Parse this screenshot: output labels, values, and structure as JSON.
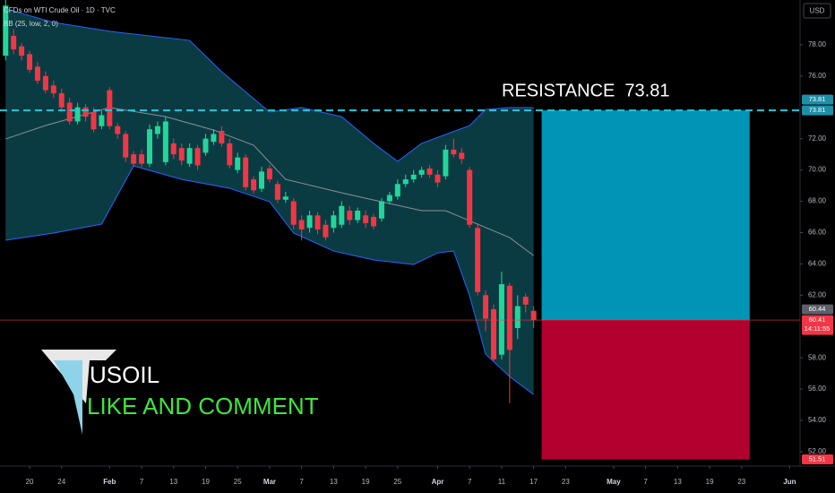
{
  "chart_data": {
    "type": "candlestick",
    "title": "CFDs on WTI Crude Oil · 1D · TVC",
    "indicator_label": "BB (25, low, 2, 0)",
    "currency_label": "USD",
    "annotation": "RESISTANCE  73.81",
    "logo_text": "USOIL",
    "caption": "LIKE AND COMMENT",
    "up_color": "#22d69a",
    "down_color": "#f23645",
    "band_color": "#2962ff",
    "band_fill": "#0b3b42",
    "basis_color": "#8a8f98",
    "resistance": {
      "value": 73.81,
      "color": "#26c6da"
    },
    "last_price_line": {
      "value": 60.41,
      "color": "#f23645"
    },
    "position_box": {
      "x_start": 64,
      "x_end": 90,
      "target": 73.81,
      "entry": 60.41,
      "stop": 51.51,
      "profit_color": "#0094b6",
      "loss_color": "#b2002f"
    },
    "xlim": [
      -3.7,
      96.3
    ],
    "ylim": [
      51.08,
      80.86
    ],
    "xticks": [
      {
        "value": 0,
        "label": "20"
      },
      {
        "value": 4,
        "label": "24"
      },
      {
        "value": 10,
        "label": "Feb"
      },
      {
        "value": 14,
        "label": "7"
      },
      {
        "value": 18,
        "label": "13"
      },
      {
        "value": 22,
        "label": "19"
      },
      {
        "value": 26,
        "label": "25"
      },
      {
        "value": 30,
        "label": "Mar"
      },
      {
        "value": 34,
        "label": "7"
      },
      {
        "value": 38,
        "label": "13"
      },
      {
        "value": 42,
        "label": "19"
      },
      {
        "value": 46,
        "label": "25"
      },
      {
        "value": 51,
        "label": "Apr"
      },
      {
        "value": 55,
        "label": "7"
      },
      {
        "value": 59,
        "label": "11"
      },
      {
        "value": 63,
        "label": "17"
      },
      {
        "value": 67,
        "label": "23"
      },
      {
        "value": 73,
        "label": "May"
      },
      {
        "value": 77,
        "label": "7"
      },
      {
        "value": 81,
        "label": "13"
      },
      {
        "value": 85,
        "label": "19"
      },
      {
        "value": 89,
        "label": "23"
      },
      {
        "value": 95,
        "label": "Jun"
      }
    ],
    "yticks": [
      {
        "value": 52,
        "label": "52.00"
      },
      {
        "value": 54,
        "label": "54.00"
      },
      {
        "value": 56,
        "label": "56.00"
      },
      {
        "value": 58,
        "label": "58.00"
      },
      {
        "value": 62,
        "label": "62.00"
      },
      {
        "value": 64,
        "label": "64.00"
      },
      {
        "value": 66,
        "label": "66.00"
      },
      {
        "value": 68,
        "label": "68.00"
      },
      {
        "value": 70,
        "label": "70.00"
      },
      {
        "value": 72,
        "label": "72.00"
      },
      {
        "value": 76,
        "label": "76.00"
      },
      {
        "value": 78,
        "label": "78.00"
      }
    ],
    "price_tags": [
      {
        "value": 73.81,
        "label": "73.81",
        "color": "#1f8fa8"
      },
      {
        "value": 73.81,
        "label": "73.81",
        "color": "#1f8fa8"
      },
      {
        "value": 60.44,
        "label": "60.44",
        "color": "#5d606b"
      },
      {
        "value": 60.41,
        "label": "60.41",
        "color": "#f23645",
        "countdown": "14:11:55"
      },
      {
        "value": 51.51,
        "label": "51.51",
        "color": "#f23645"
      }
    ],
    "x": [
      -3,
      -2,
      -1,
      0,
      1,
      2,
      3,
      4,
      5,
      6,
      7,
      8,
      9,
      10,
      11,
      12,
      13,
      14,
      15,
      16,
      17,
      18,
      19,
      20,
      21,
      22,
      23,
      24,
      25,
      26,
      27,
      28,
      29,
      30,
      31,
      32,
      33,
      34,
      35,
      36,
      37,
      38,
      39,
      40,
      41,
      42,
      43,
      44,
      45,
      46,
      47,
      48,
      49,
      50,
      51,
      52,
      53,
      54,
      55,
      56,
      57,
      58,
      59,
      60,
      61,
      62,
      63
    ],
    "open": [
      77.3,
      78.57,
      77.9,
      77.4,
      76.6,
      76.0,
      75.4,
      74.9,
      74.3,
      73.1,
      74.0,
      73.7,
      72.8,
      75.1,
      72.8,
      72.3,
      71.0,
      71.0,
      70.4,
      72.3,
      70.5,
      71.7,
      71.4,
      70.4,
      71.4,
      71.1,
      71.8,
      72.5,
      71.7,
      70.0,
      70.8,
      69.4,
      68.8,
      70.1,
      69.1,
      68.1,
      68.0,
      66.8,
      66.3,
      67.1,
      66.5,
      66.3,
      66.5,
      67.4,
      66.8,
      67.1,
      67.0,
      66.9,
      68.0,
      68.3,
      69.1,
      69.4,
      69.7,
      70.1,
      69.7,
      69.6,
      71.3,
      71.1,
      70.0,
      66.3,
      62.0,
      61.1,
      58.2,
      62.6,
      59.9,
      61.9,
      61.0
    ],
    "high": [
      80.86,
      79.0,
      78.1,
      77.6,
      76.9,
      76.3,
      75.7,
      75.2,
      74.6,
      74.3,
      74.2,
      74.0,
      73.8,
      75.3,
      73.0,
      72.5,
      71.2,
      71.3,
      72.9,
      73.1,
      73.4,
      72.0,
      71.7,
      71.7,
      71.6,
      72.3,
      72.6,
      72.8,
      72.0,
      71.1,
      71.0,
      69.6,
      70.2,
      70.3,
      69.3,
      68.6,
      68.2,
      67.1,
      67.4,
      67.3,
      66.8,
      67.4,
      68.0,
      67.7,
      67.6,
      67.4,
      67.2,
      68.2,
      68.6,
      69.4,
      69.7,
      70.0,
      70.2,
      70.3,
      70.0,
      71.6,
      72.0,
      71.4,
      70.2,
      66.5,
      62.3,
      61.4,
      63.5,
      62.8,
      62.0,
      62.1,
      61.3
    ],
    "low": [
      77.0,
      77.4,
      77.0,
      76.2,
      75.5,
      74.9,
      74.6,
      73.8,
      72.9,
      72.9,
      73.1,
      72.4,
      72.6,
      72.6,
      72.0,
      70.5,
      70.2,
      70.2,
      70.2,
      72.0,
      70.3,
      70.7,
      70.3,
      70.2,
      70.0,
      70.9,
      71.6,
      71.5,
      70.1,
      69.8,
      68.7,
      68.5,
      68.6,
      69.2,
      67.9,
      67.9,
      66.2,
      65.5,
      66.0,
      65.9,
      65.5,
      66.0,
      66.3,
      66.5,
      66.6,
      66.3,
      66.2,
      66.7,
      67.8,
      68.1,
      68.9,
      69.2,
      69.5,
      69.5,
      68.9,
      69.4,
      70.8,
      70.4,
      66.3,
      62.0,
      59.7,
      57.8,
      57.9,
      55.1,
      59.2,
      60.9,
      59.9
    ],
    "close": [
      80.5,
      77.71,
      77.3,
      76.4,
      75.7,
      75.1,
      74.9,
      74.0,
      73.1,
      74.0,
      73.4,
      72.6,
      73.5,
      72.8,
      72.3,
      70.8,
      70.4,
      70.4,
      72.6,
      72.8,
      73.1,
      71.0,
      70.6,
      71.4,
      70.3,
      72.0,
      72.3,
      71.7,
      70.3,
      70.8,
      68.9,
      68.7,
      69.9,
      69.4,
      68.1,
      68.3,
      66.5,
      66.2,
      67.1,
      66.2,
      65.7,
      67.1,
      67.7,
      66.8,
      67.4,
      66.6,
      66.4,
      68.0,
      68.4,
      69.1,
      69.4,
      69.7,
      70.0,
      69.7,
      69.2,
      71.3,
      71.0,
      70.7,
      66.5,
      62.2,
      60.5,
      57.9,
      62.7,
      58.5,
      61.3,
      61.4,
      60.41
    ],
    "bands": {
      "upper": {
        "x": [
          -3,
          3,
          10,
          20,
          24,
          30,
          34,
          39,
          43,
          46,
          49,
          52,
          55,
          57,
          60,
          63
        ],
        "values": [
          80.29,
          79.43,
          78.86,
          78.28,
          76.28,
          73.7,
          73.99,
          73.41,
          71.7,
          70.55,
          71.7,
          72.27,
          72.84,
          73.87,
          73.99,
          73.99
        ]
      },
      "basis": {
        "x": [
          -3,
          2,
          10,
          17,
          23,
          28,
          32,
          39,
          44,
          49,
          52,
          56,
          60,
          63
        ],
        "values": [
          71.98,
          72.84,
          73.99,
          73.41,
          72.55,
          71.58,
          69.4,
          68.54,
          67.97,
          67.4,
          67.4,
          66.54,
          65.68,
          64.53
        ]
      },
      "lower": {
        "x": [
          -3,
          3,
          9,
          13,
          19,
          25,
          30,
          33,
          38,
          43,
          48,
          51,
          53,
          55,
          57,
          60,
          63
        ],
        "values": [
          65.51,
          65.97,
          66.54,
          70.26,
          69.4,
          68.83,
          67.97,
          65.97,
          64.82,
          64.25,
          63.96,
          64.7,
          64.82,
          61.95,
          58.23,
          56.8,
          55.65
        ]
      }
    }
  }
}
